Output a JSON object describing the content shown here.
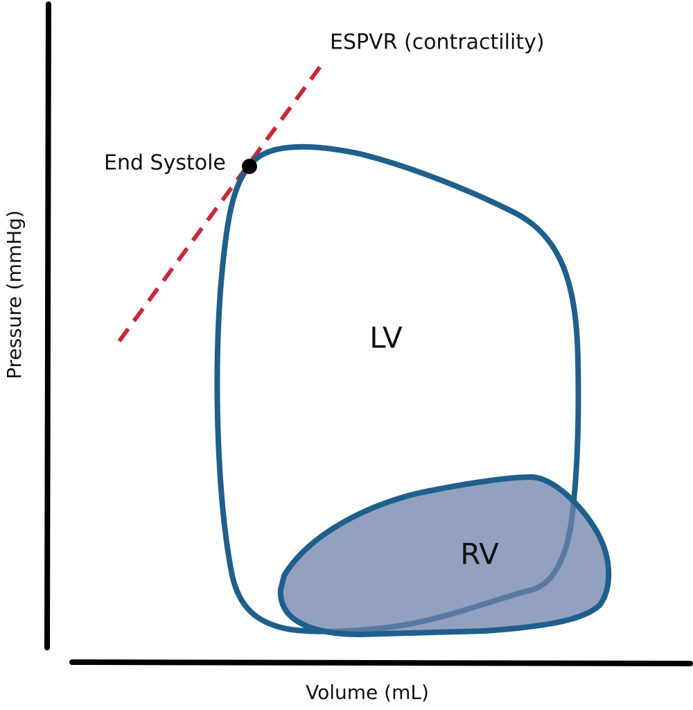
{
  "axes": {
    "x_label": "Volume (mL)",
    "y_label": "Pressure (mmHg)"
  },
  "annotations": {
    "espvr": "ESPVR (contractility)",
    "end_systole": "End Systole"
  },
  "loops": {
    "lv": "LV",
    "rv": "RV"
  }
}
